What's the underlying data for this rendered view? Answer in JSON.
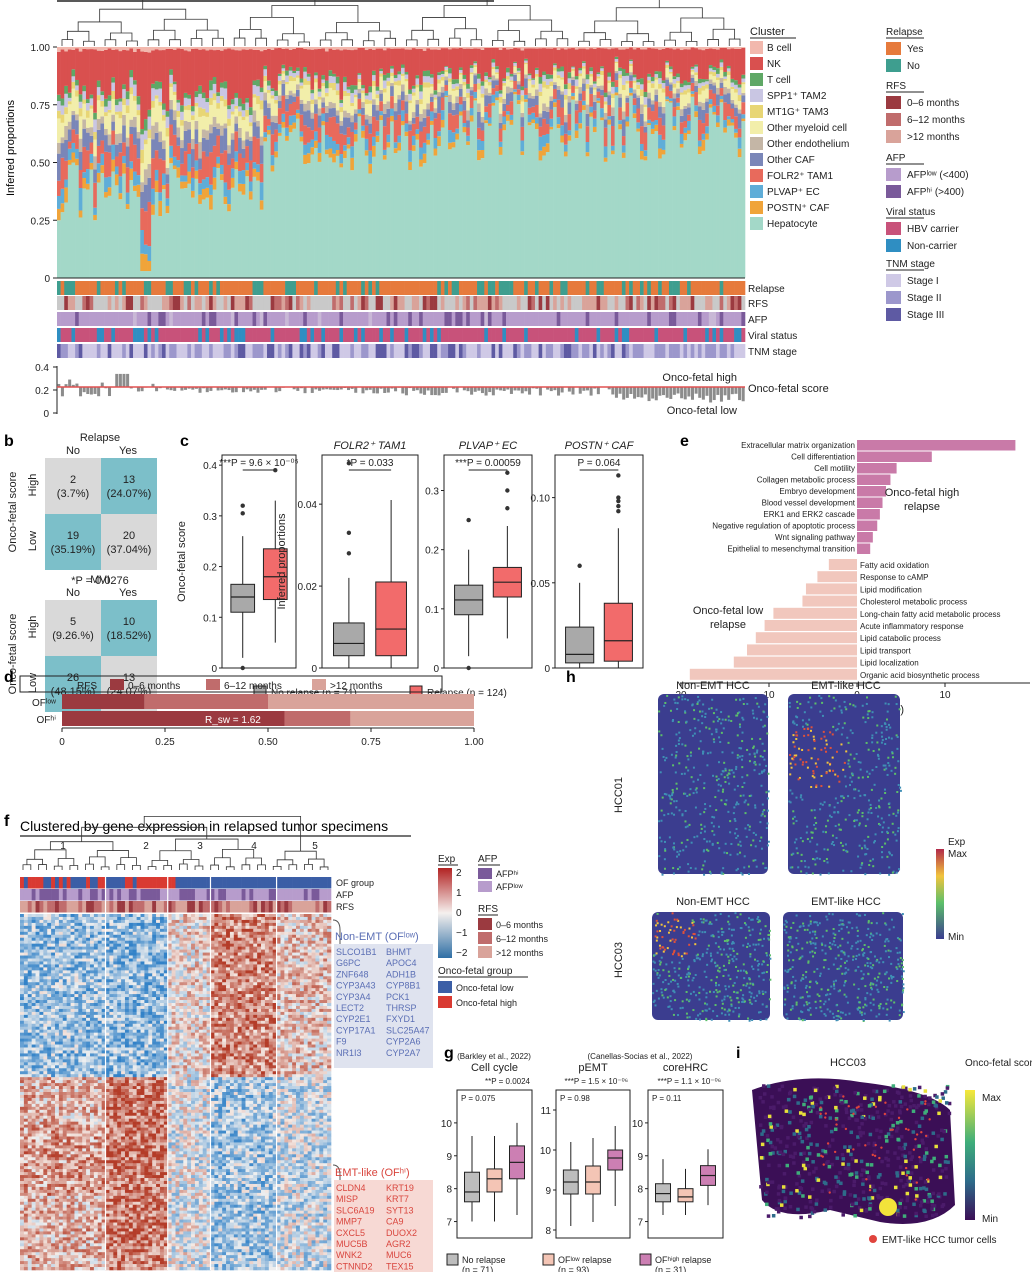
{
  "colors": {
    "relapse_yes": "#e67a3c",
    "relapse_no": "#3e9e8f",
    "rfs_0_6": "#9b3a40",
    "rfs_6_12": "#c06c6c",
    "rfs_12": "#d9a39a",
    "afp_low": "#b79ccc",
    "afp_hi": "#7a5a9a",
    "hbv": "#c8527a",
    "noncarrier": "#2f8ec2",
    "stage1": "#cfc9e6",
    "stage2": "#9c97cc",
    "stage3": "#5e5aa3",
    "no_relapse_box": "#a9a9a9",
    "relapse_box": "#f26b6b",
    "go_high": "#c97aa8",
    "go_low": "#f1c7bd",
    "of_low": "#3b5ea6",
    "of_high": "#d93a32",
    "non_emt_text": "#5b6fb5",
    "emt_text": "#d9463e"
  },
  "panel_a": {
    "ylabel": "Inferred proportions",
    "yticks": [
      "0",
      "0.25",
      "0.50",
      "0.75",
      "1.00"
    ],
    "cluster_title": "Cluster",
    "clusters": [
      {
        "name": "B cell",
        "color": "#f2b8ad"
      },
      {
        "name": "NK",
        "color": "#d9504f"
      },
      {
        "name": "T cell",
        "color": "#5fa866"
      },
      {
        "name": "SPP1⁺ TAM2",
        "color": "#c9c6e3"
      },
      {
        "name": "MT1G⁺ TAM3",
        "color": "#e8d675"
      },
      {
        "name": "Other myeloid cell",
        "color": "#f2eeaa"
      },
      {
        "name": "Other endothelium",
        "color": "#c4b6a6"
      },
      {
        "name": "Other CAF",
        "color": "#7a86b8"
      },
      {
        "name": "FOLR2⁺ TAM1",
        "color": "#e86a5c"
      },
      {
        "name": "PLVAP⁺ EC",
        "color": "#5fadd8"
      },
      {
        "name": "POSTN⁺ CAF",
        "color": "#f0a43a"
      },
      {
        "name": "Hepatocyte",
        "color": "#a3d8c8"
      }
    ],
    "annotation_rows": [
      "Relapse",
      "RFS",
      "AFP",
      "Viral status",
      "TNM stage"
    ],
    "legend": {
      "relapse_title": "Relapse",
      "relapse_yes": "Yes",
      "relapse_no": "No",
      "rfs_title": "RFS",
      "rfs_items": [
        "0–6 months",
        "6–12 months",
        ">12 months"
      ],
      "afp_title": "AFP",
      "afp_items": [
        "AFPˡᵒʷ (<400)",
        "AFPʰⁱ (>400)"
      ],
      "viral_title": "Viral status",
      "viral_items": [
        "HBV carrier",
        "Non-carrier"
      ],
      "tnm_title": "TNM stage",
      "tnm_items": [
        "Stage I",
        "Stage II",
        "Stage III"
      ]
    },
    "score_yticks": [
      "0",
      "0.2",
      "0.4"
    ],
    "score_labels": {
      "high": "Onco-fetal high",
      "score": "Onco-fetal score",
      "low": "Onco-fetal low"
    }
  },
  "panel_b": {
    "label": "b",
    "table1": {
      "title": "Relapse",
      "cols": [
        "No",
        "Yes"
      ],
      "rows": [
        "High",
        "Low"
      ],
      "ylabel": "Onco-fetal score",
      "cells": [
        [
          "2",
          "(3.7%)"
        ],
        [
          "13",
          "(24.07%)"
        ],
        [
          "19",
          "(35.19%)"
        ],
        [
          "20",
          "(37.04%)"
        ]
      ],
      "p": "*P = 0.0276"
    },
    "table2": {
      "title": "MVI",
      "cols": [
        "No",
        "Yes"
      ],
      "rows": [
        "High",
        "Low"
      ],
      "ylabel": "Onco-fetal score",
      "cells": [
        [
          "5",
          "(9.26.%)"
        ],
        [
          "10",
          "(18.52%)"
        ],
        [
          "26",
          "(48.15%)"
        ],
        [
          "13",
          "(24.07%)"
        ]
      ],
      "p": "*P = 0.0349"
    }
  },
  "panel_c": {
    "label": "c",
    "plots": [
      {
        "title": "",
        "ylabel": "Onco-fetal score",
        "yticks": [
          "0",
          "0.1",
          "0.2",
          "0.3",
          "0.4"
        ],
        "p": "***P = 9.6 × 10⁻⁰⁵"
      },
      {
        "title": "FOLR2⁺ TAM1",
        "ylabel": "Inferred proportions",
        "yticks": [
          "0",
          "0.02",
          "0.04"
        ],
        "p": "*P = 0.033"
      },
      {
        "title": "PLVAP⁺ EC",
        "ylabel": "",
        "yticks": [
          "0",
          "0.1",
          "0.2",
          "0.3"
        ],
        "p": "***P = 0.00059"
      },
      {
        "title": "POSTN⁺ CAF",
        "ylabel": "",
        "yticks": [
          "0",
          "0.05",
          "0.10"
        ],
        "p": "P = 0.064"
      }
    ],
    "legend_no": "No relapse (n = 71)",
    "legend_yes": "Relapse (n = 124)"
  },
  "chart_data": {
    "type": "bar",
    "title": "",
    "xlabel": "−log₁₀(adj. P value)",
    "xticks": [
      "20",
      "10",
      "0",
      "10"
    ],
    "series": [
      {
        "name": "Onco-fetal high relapse",
        "categories": [
          "Extracellular matrix organization",
          "Cell differentiation",
          "Cell motility",
          "Collagen metabolic process",
          "Embryo development",
          "Blood vessel development",
          "ERK1 and ERK2 cascade",
          "Negative regulation of apoptotic process",
          "Wnt signaling pathway",
          "Epithelial to mesenchymal transition"
        ],
        "values": [
          18,
          8.5,
          4.5,
          3.8,
          3.3,
          2.9,
          2.6,
          2.3,
          1.8,
          1.5
        ]
      },
      {
        "name": "Onco-fetal low relapse",
        "categories": [
          "Fatty acid oxidation",
          "Response to cAMP",
          "Lipid modification",
          "Cholesterol metabolic process",
          "Long-chain fatty acid metabolic process",
          "Acute inflammatory response",
          "Lipid catabolic process",
          "Lipid transport",
          "Lipid localization",
          "Organic acid biosynthetic process"
        ],
        "values": [
          3.2,
          4.5,
          5.8,
          6.2,
          9.5,
          10.5,
          11.5,
          12.5,
          14,
          19
        ]
      }
    ],
    "label": "e"
  },
  "panel_d": {
    "label": "d",
    "legend_title": "RFS",
    "legend_items": [
      "0–6 months",
      "6–12 months",
      ">12 months"
    ],
    "rows": [
      "OFˡᵒʷ",
      "OFʰⁱ"
    ],
    "rows_values": [
      [
        0.2,
        0.5,
        1.0
      ],
      [
        0.54,
        0.7,
        1.0
      ]
    ],
    "annotation": "R_sw = 1.62",
    "xticks": [
      "0",
      "0.25",
      "0.50",
      "0.75",
      "1.00"
    ]
  },
  "panel_f": {
    "label": "f",
    "title": "Clustered by gene expression in relapsed tumor specimens",
    "clusters": [
      "1",
      "2",
      "3",
      "4",
      "5"
    ],
    "row_labels": [
      "OF group",
      "AFP",
      "RFS"
    ],
    "exp_title": "Exp",
    "exp_ticks": [
      "2",
      "1",
      "0",
      "−1",
      "−2"
    ],
    "afp_title": "AFP",
    "afp_items": [
      "AFPʰⁱ",
      "AFPˡᵒʷ"
    ],
    "rfs_title": "RFS",
    "rfs_items": [
      "0–6 months",
      "6–12 months",
      ">12 months"
    ],
    "of_title": "Onco-fetal group",
    "of_items": [
      "Onco-fetal low",
      "Onco-fetal high"
    ],
    "non_emt_title": "Non-EMT (OFˡᵒʷ)",
    "non_emt_col1": [
      "SLCO1B1",
      "G6PC",
      "ZNF648",
      "CYP3A43",
      "CYP3A4",
      "LECT2",
      "CYP2E1",
      "CYP17A1",
      "F9",
      "NR1I3"
    ],
    "non_emt_col2": [
      "BHMT",
      "APOC4",
      "ADH1B",
      "CYP8B1",
      "PCK1",
      "THRSP",
      "FXYD1",
      "SLC25A47",
      "CYP2A6",
      "CYP2A7"
    ],
    "emt_title": "EMT-like (OFʰⁱ)",
    "emt_col1": [
      "CLDN4",
      "MISP",
      "SLC6A19",
      "MMP7",
      "CXCL5",
      "MUC5B",
      "WNK2",
      "CTNND2",
      "DMBT1",
      "KRT80"
    ],
    "emt_col2": [
      "KRT19",
      "KRT7",
      "SYT13",
      "CA9",
      "DUOX2",
      "AGR2",
      "MUC6",
      "TEX15",
      "CXCL1",
      "CXCL6"
    ]
  },
  "panel_g": {
    "label": "g",
    "plots": [
      {
        "source": "(Barkley et al., 2022)",
        "title": "Cell cycle",
        "yticks": [
          "7",
          "8",
          "9",
          "10"
        ],
        "p1": "**P = 0.0024",
        "p2": "P = 0.075"
      },
      {
        "source": "(Canellas-Socias et al., 2022)",
        "title": "pEMT",
        "yticks": [
          "8",
          "9",
          "10",
          "11"
        ],
        "p1": "***P = 1.5 × 10⁻⁰⁶",
        "p2": "P = 0.98"
      },
      {
        "source": "",
        "title": "coreHRC",
        "yticks": [
          "7",
          "8",
          "9",
          "10"
        ],
        "p1": "***P = 1.1 × 10⁻⁰⁶",
        "p2": "P = 0.11"
      }
    ],
    "legend": [
      "No relapse",
      "OFˡᵒʷ relapse",
      "OFʰⁱᵍʰ relapse"
    ],
    "legend_n": [
      "(n = 71)",
      "(n = 93)",
      "(n = 31)"
    ]
  },
  "panel_h": {
    "label": "h",
    "cols": [
      "Non-EMT HCC",
      "EMT-like HCC"
    ],
    "rows": [
      "HCC01",
      "HCC03"
    ],
    "exp_title": "Exp",
    "max": "Max",
    "min": "Min"
  },
  "panel_i": {
    "label": "i",
    "title": "HCC03",
    "legend_title": "Onco-fetal score",
    "max": "Max",
    "min": "Min",
    "dot_label": "EMT-like HCC tumor cells"
  }
}
